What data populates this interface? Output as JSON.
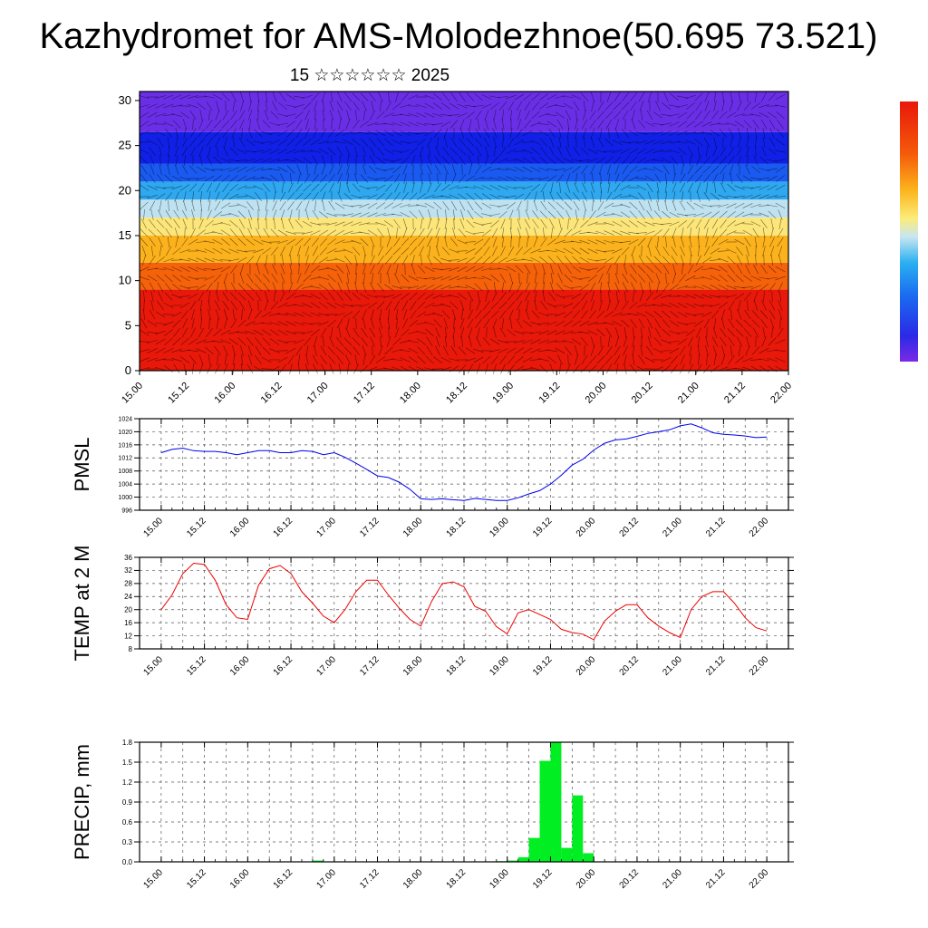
{
  "header": {
    "title": "Kazhydromet for AMS-Molodezhnoe(50.695 73.521)",
    "subtitle": "15 ☆☆☆☆☆☆ 2025"
  },
  "chart_data": [
    {
      "id": "cross_section",
      "type": "heatmap",
      "title": "",
      "xlabel": "",
      "ylabel": "",
      "x_ticks": [
        "15.00",
        "15.12",
        "16.00",
        "16.12",
        "17.00",
        "17.12",
        "18.00",
        "18.12",
        "19.00",
        "19.12",
        "20.00",
        "20.12",
        "21.00",
        "21.12",
        "22.00"
      ],
      "y_ticks": [
        0,
        5,
        10,
        15,
        20,
        25,
        30
      ],
      "ylim": [
        0,
        31
      ],
      "xlim_hours": [
        0,
        168
      ],
      "colorbar": {
        "orientation": "vertical",
        "placement": "right",
        "tick_labels": []
      },
      "bands": [
        {
          "y_from": 0,
          "y_to": 9,
          "color": "#e8180a"
        },
        {
          "y_from": 9,
          "y_to": 12,
          "color": "#f5620a"
        },
        {
          "y_from": 12,
          "y_to": 15,
          "color": "#fbb21c"
        },
        {
          "y_from": 15,
          "y_to": 17,
          "color": "#fce67a"
        },
        {
          "y_from": 17,
          "y_to": 19,
          "color": "#bfe2f0"
        },
        {
          "y_from": 19,
          "y_to": 21,
          "color": "#2fa8f0"
        },
        {
          "y_from": 21,
          "y_to": 23,
          "color": "#1a5af0"
        },
        {
          "y_from": 23,
          "y_to": 26.5,
          "color": "#1020e6"
        },
        {
          "y_from": 26.5,
          "y_to": 31,
          "color": "#6a2ee6"
        }
      ],
      "overlay": "wind barbs",
      "grid": false
    },
    {
      "id": "pmsl",
      "type": "line",
      "ylabel": "PMSL",
      "ylim": [
        996,
        1024
      ],
      "y_ticks": [
        996,
        1000,
        1004,
        1008,
        1012,
        1016,
        1020,
        1024
      ],
      "x_ticks": [
        "15.00",
        "15.12",
        "16.00",
        "16.12",
        "17.00",
        "17.12",
        "18.00",
        "18.12",
        "19.00",
        "19.12",
        "20.00",
        "20.12",
        "21.00",
        "21.12",
        "22.00"
      ],
      "x_hours": [
        0,
        3,
        6,
        9,
        12,
        15,
        18,
        21,
        24,
        27,
        30,
        33,
        36,
        39,
        42,
        45,
        48,
        51,
        54,
        57,
        60,
        63,
        66,
        69,
        72,
        75,
        78,
        81,
        84,
        87,
        90,
        93,
        96,
        99,
        102,
        105,
        108,
        111,
        114,
        117,
        120,
        123,
        126,
        129,
        132,
        135,
        138,
        141,
        144,
        147,
        150,
        153,
        156,
        159,
        162,
        165,
        168
      ],
      "series": [
        {
          "color": "#0000ee",
          "values": [
            1013.6,
            1014.6,
            1015.0,
            1014.2,
            1014.0,
            1014.0,
            1013.6,
            1013.0,
            1013.6,
            1014.2,
            1014.2,
            1013.6,
            1013.6,
            1014.2,
            1014.0,
            1013.0,
            1013.6,
            1012.2,
            1010.4,
            1008.5,
            1006.5,
            1006.0,
            1004.6,
            1002.4,
            999.5,
            999.3,
            999.5,
            999.2,
            999.0,
            999.6,
            999.3,
            999.0,
            999.0,
            999.8,
            1001.0,
            1002.0,
            1004.0,
            1006.7,
            1009.8,
            1011.6,
            1014.4,
            1016.5,
            1017.5,
            1017.8,
            1018.6,
            1019.5,
            1020.0,
            1020.6,
            1021.8,
            1022.4,
            1021.2,
            1019.7,
            1019.2,
            1019.0,
            1018.7,
            1018.2,
            1018.4
          ]
        }
      ],
      "grid": true
    },
    {
      "id": "temp2m",
      "type": "line",
      "ylabel": "TEMP at 2 M",
      "ylim": [
        8,
        36
      ],
      "y_ticks": [
        8,
        12,
        16,
        20,
        24,
        28,
        32,
        36
      ],
      "x_ticks": [
        "15.00",
        "15.12",
        "16.00",
        "16.12",
        "17.00",
        "17.12",
        "18.00",
        "18.12",
        "19.00",
        "19.12",
        "20.00",
        "20.12",
        "21.00",
        "21.12",
        "22.00"
      ],
      "x_hours": [
        0,
        3,
        6,
        9,
        12,
        15,
        18,
        21,
        24,
        27,
        30,
        33,
        36,
        39,
        42,
        45,
        48,
        51,
        54,
        57,
        60,
        63,
        66,
        69,
        72,
        75,
        78,
        81,
        84,
        87,
        90,
        93,
        96,
        99,
        102,
        105,
        108,
        111,
        114,
        117,
        120,
        123,
        126,
        129,
        132,
        135,
        138,
        141,
        144,
        147,
        150,
        153,
        156,
        159,
        162,
        165,
        168
      ],
      "series": [
        {
          "color": "#ee0000",
          "values": [
            20.0,
            24.5,
            31.0,
            34.2,
            33.8,
            29.0,
            21.5,
            17.5,
            17.0,
            27.5,
            32.5,
            33.5,
            31.0,
            25.5,
            22.0,
            18.0,
            16.0,
            20.0,
            25.5,
            29.0,
            29.0,
            24.5,
            20.5,
            17.0,
            15.0,
            22.5,
            28.0,
            28.5,
            27.0,
            21.0,
            19.5,
            14.8,
            12.6,
            19.0,
            20.0,
            18.5,
            17.0,
            14.0,
            13.0,
            12.5,
            10.8,
            16.5,
            19.5,
            21.5,
            21.5,
            17.5,
            15.0,
            13.0,
            11.5,
            20.0,
            24.0,
            25.5,
            25.5,
            22.0,
            17.5,
            14.5,
            13.5
          ]
        }
      ],
      "grid": true
    },
    {
      "id": "precip",
      "type": "bar",
      "ylabel": "PRECIP, mm",
      "ylim": [
        0,
        1.8
      ],
      "y_ticks": [
        "0.0",
        "0.3",
        "0.6",
        "0.9",
        "1.2",
        "1.5",
        "1.8"
      ],
      "x_ticks": [
        "15.00",
        "15.12",
        "16.00",
        "16.12",
        "17.00",
        "17.12",
        "18.00",
        "18.12",
        "19.00",
        "19.12",
        "20.00",
        "20.12",
        "21.00",
        "21.12",
        "22.00"
      ],
      "bar_width_hours": 3,
      "bars": [
        {
          "start_hour": 42,
          "value": 0.02
        },
        {
          "start_hour": 93,
          "value": 0.01
        },
        {
          "start_hour": 96,
          "value": 0.02
        },
        {
          "start_hour": 99,
          "value": 0.07
        },
        {
          "start_hour": 102,
          "value": 0.36
        },
        {
          "start_hour": 105,
          "value": 1.52
        },
        {
          "start_hour": 108,
          "value": 1.8
        },
        {
          "start_hour": 111,
          "value": 0.21
        },
        {
          "start_hour": 114,
          "value": 1.0
        },
        {
          "start_hour": 117,
          "value": 0.13
        }
      ],
      "bar_color": "#00ee22",
      "grid": true
    }
  ]
}
